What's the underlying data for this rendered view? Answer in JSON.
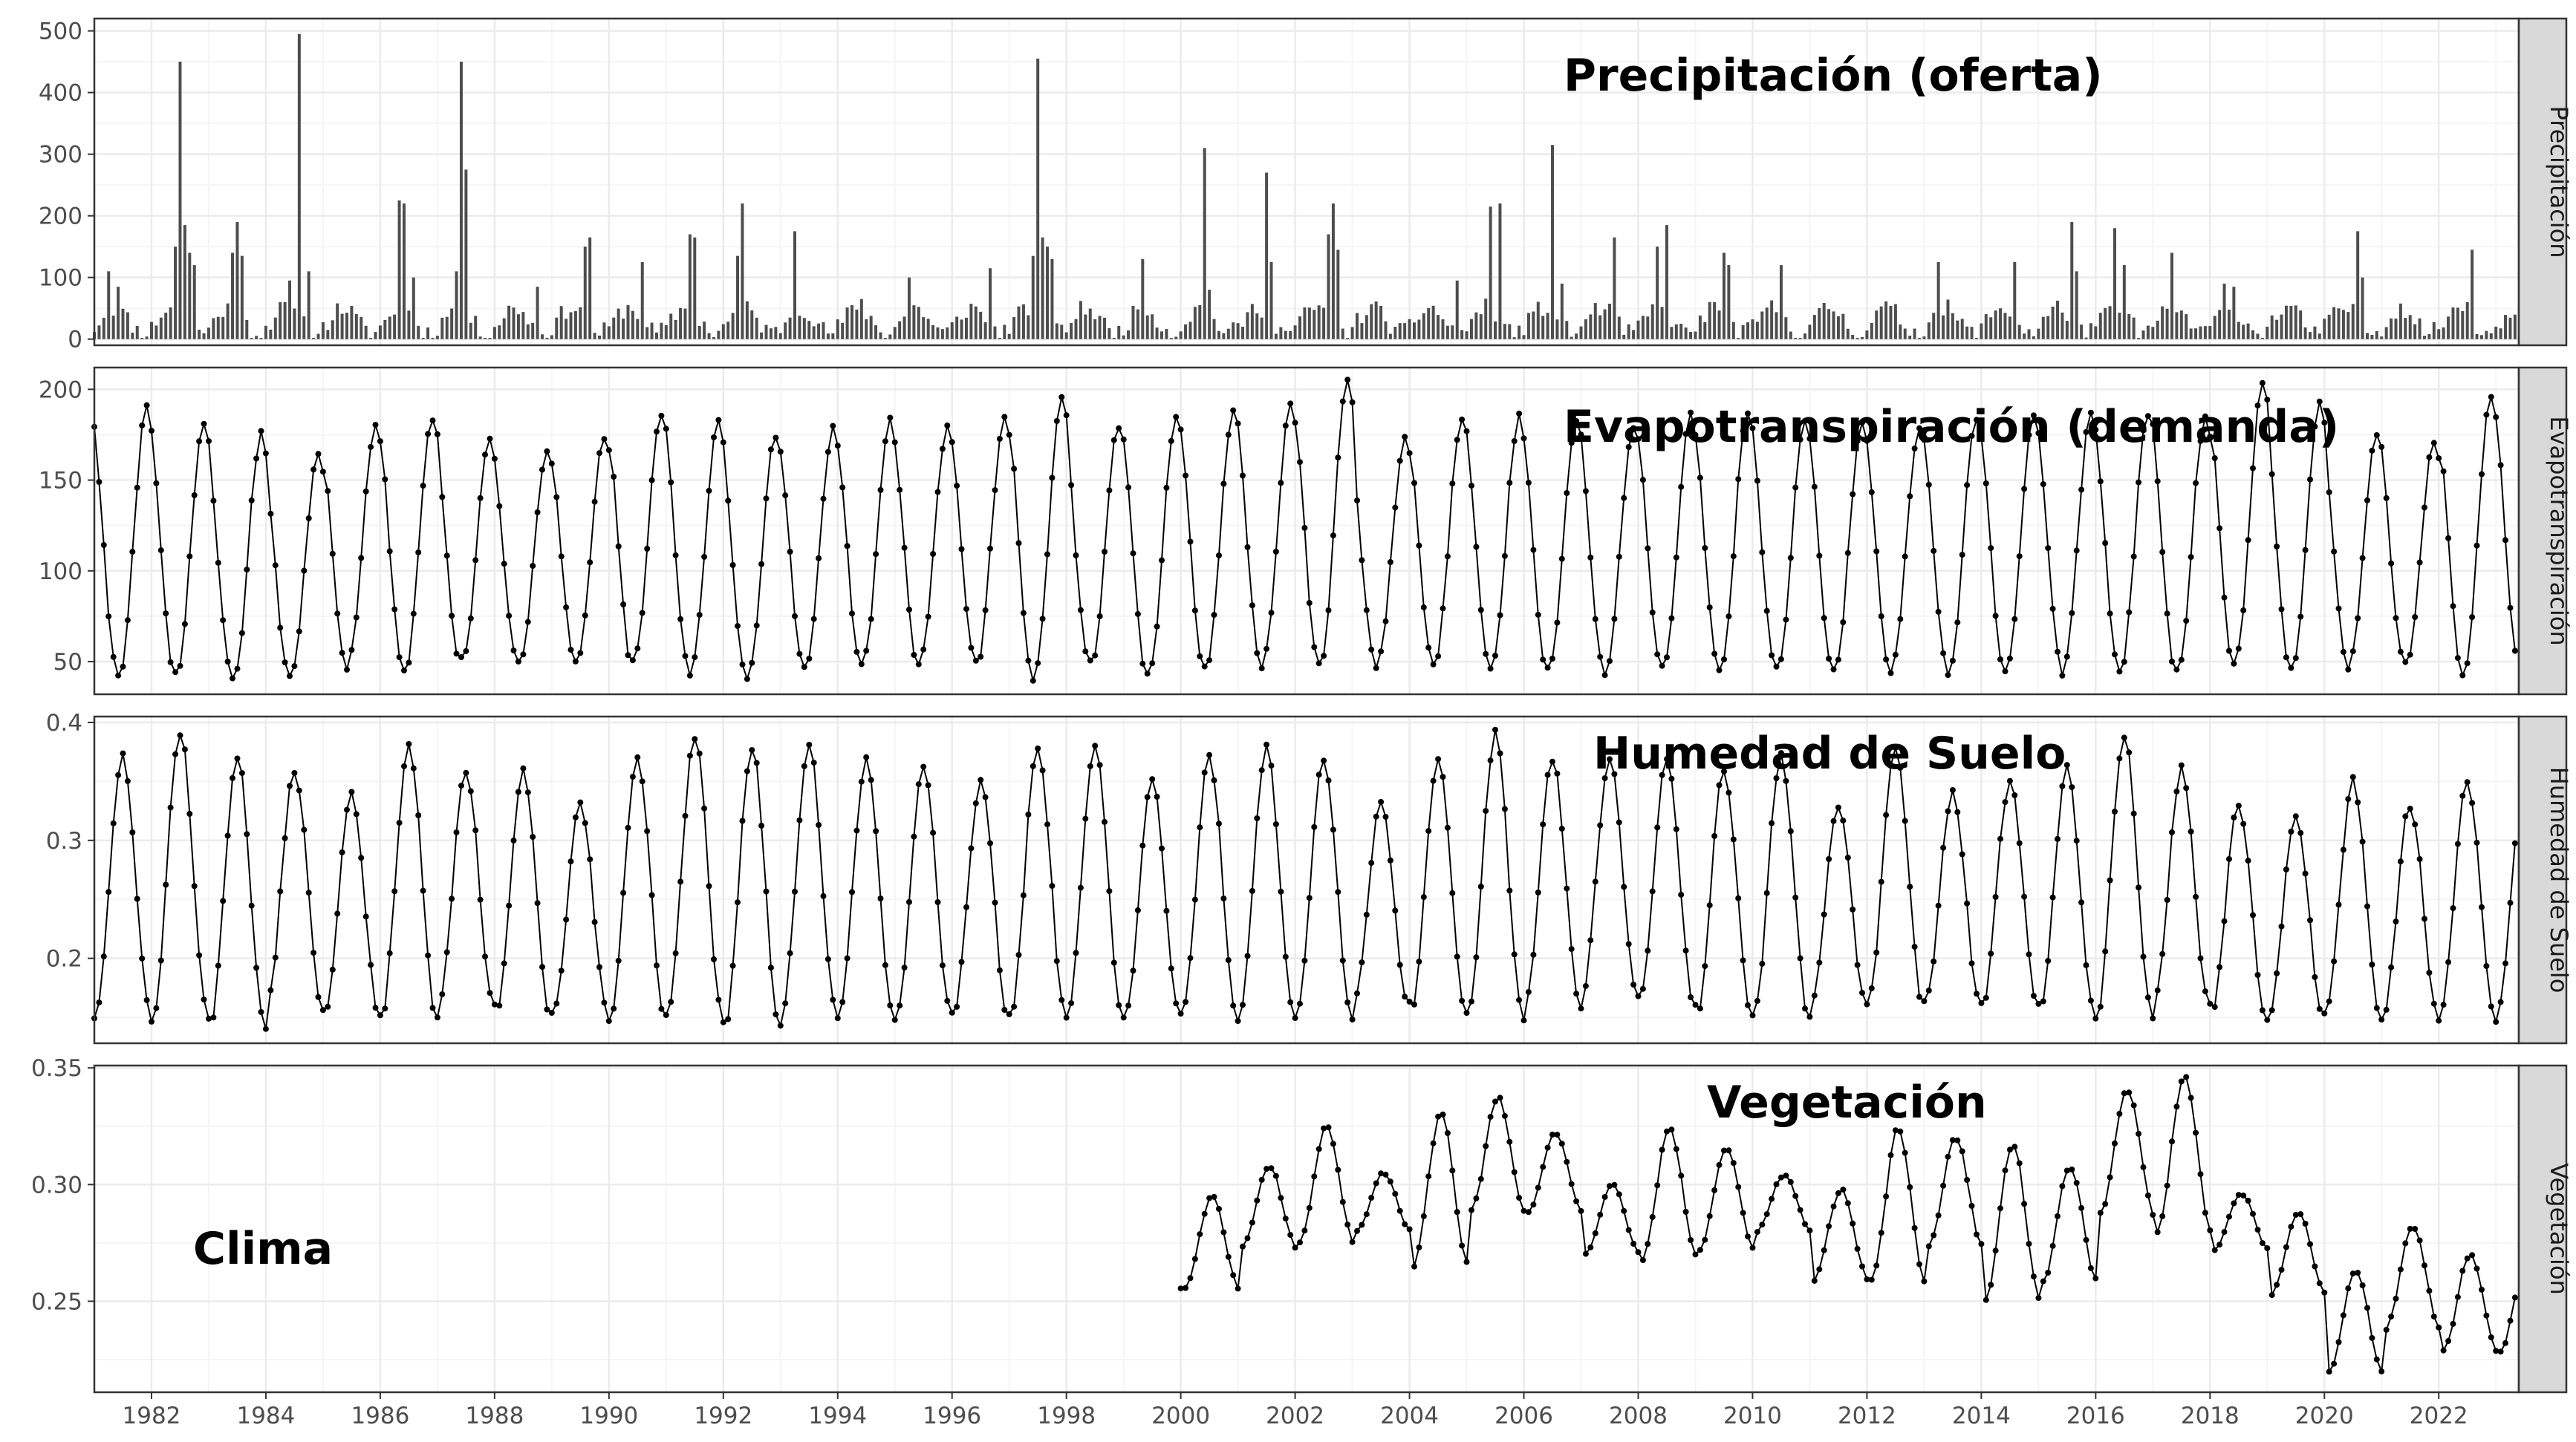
{
  "colors": {
    "background": "#ffffff",
    "panel_border": "#333333",
    "grid_major": "#ebebeb",
    "grid_minor": "#f5f5f5",
    "strip_fill": "#d9d9d9",
    "ink": "#000000",
    "bar": "#4d4d4d"
  },
  "figure": {
    "annotation": "Clima",
    "x_ticks": [
      "1982",
      "1984",
      "1986",
      "1988",
      "1990",
      "1992",
      "1994",
      "1996",
      "1998",
      "2000",
      "2002",
      "2004",
      "2006",
      "2008",
      "2010",
      "2012",
      "2014",
      "2016",
      "2018",
      "2020",
      "2022"
    ]
  },
  "chart_data": [
    {
      "type": "bar",
      "strip": "Precipitación",
      "title": "Precipitación (oferta)",
      "x_range": [
        1981.0,
        2023.4
      ],
      "ylim": [
        -10,
        520
      ],
      "y_ticks": [
        "0",
        "100",
        "200",
        "300",
        "400",
        "500"
      ],
      "y_tick_values": [
        0,
        100,
        200,
        300,
        400,
        500
      ],
      "grid": true,
      "baseline": 25,
      "seasonal_amplitude": 20,
      "noise": 15,
      "seed": 11,
      "peaks": [
        {
          "x": 1981.25,
          "value": 110
        },
        {
          "x": 1981.42,
          "value": 85
        },
        {
          "x": 1982.42,
          "value": 150
        },
        {
          "x": 1982.5,
          "value": 450
        },
        {
          "x": 1982.58,
          "value": 185
        },
        {
          "x": 1982.67,
          "value": 140
        },
        {
          "x": 1982.75,
          "value": 120
        },
        {
          "x": 1983.42,
          "value": 140
        },
        {
          "x": 1983.5,
          "value": 190
        },
        {
          "x": 1983.58,
          "value": 135
        },
        {
          "x": 1984.42,
          "value": 95
        },
        {
          "x": 1984.58,
          "value": 495
        },
        {
          "x": 1984.75,
          "value": 110
        },
        {
          "x": 1986.33,
          "value": 225
        },
        {
          "x": 1986.42,
          "value": 220
        },
        {
          "x": 1986.58,
          "value": 100
        },
        {
          "x": 1987.33,
          "value": 110
        },
        {
          "x": 1987.42,
          "value": 450
        },
        {
          "x": 1987.5,
          "value": 275
        },
        {
          "x": 1988.75,
          "value": 85
        },
        {
          "x": 1989.58,
          "value": 150
        },
        {
          "x": 1989.67,
          "value": 165
        },
        {
          "x": 1990.58,
          "value": 125
        },
        {
          "x": 1991.42,
          "value": 170
        },
        {
          "x": 1991.5,
          "value": 165
        },
        {
          "x": 1992.25,
          "value": 135
        },
        {
          "x": 1992.33,
          "value": 220
        },
        {
          "x": 1993.25,
          "value": 175
        },
        {
          "x": 1994.42,
          "value": 65
        },
        {
          "x": 1995.25,
          "value": 100
        },
        {
          "x": 1996.67,
          "value": 115
        },
        {
          "x": 1997.42,
          "value": 135
        },
        {
          "x": 1997.5,
          "value": 455
        },
        {
          "x": 1997.58,
          "value": 165
        },
        {
          "x": 1997.67,
          "value": 150
        },
        {
          "x": 1997.75,
          "value": 130
        },
        {
          "x": 1999.33,
          "value": 130
        },
        {
          "x": 2000.42,
          "value": 310
        },
        {
          "x": 2000.5,
          "value": 80
        },
        {
          "x": 2001.5,
          "value": 270
        },
        {
          "x": 2001.58,
          "value": 125
        },
        {
          "x": 2002.58,
          "value": 170
        },
        {
          "x": 2002.67,
          "value": 220
        },
        {
          "x": 2002.75,
          "value": 145
        },
        {
          "x": 2004.83,
          "value": 95
        },
        {
          "x": 2005.42,
          "value": 215
        },
        {
          "x": 2005.58,
          "value": 220
        },
        {
          "x": 2006.5,
          "value": 315
        },
        {
          "x": 2006.67,
          "value": 90
        },
        {
          "x": 2007.58,
          "value": 165
        },
        {
          "x": 2008.33,
          "value": 150
        },
        {
          "x": 2008.5,
          "value": 185
        },
        {
          "x": 2009.5,
          "value": 140
        },
        {
          "x": 2009.58,
          "value": 120
        },
        {
          "x": 2010.5,
          "value": 120
        },
        {
          "x": 2013.25,
          "value": 125
        },
        {
          "x": 2014.58,
          "value": 125
        },
        {
          "x": 2015.58,
          "value": 190
        },
        {
          "x": 2015.67,
          "value": 110
        },
        {
          "x": 2016.33,
          "value": 180
        },
        {
          "x": 2016.5,
          "value": 120
        },
        {
          "x": 2017.33,
          "value": 140
        },
        {
          "x": 2018.25,
          "value": 90
        },
        {
          "x": 2018.42,
          "value": 85
        },
        {
          "x": 2020.58,
          "value": 175
        },
        {
          "x": 2020.67,
          "value": 100
        },
        {
          "x": 2022.58,
          "value": 145
        },
        {
          "x": 2022.5,
          "value": 60
        }
      ]
    },
    {
      "type": "line",
      "strip": "Evapotranspiración",
      "title": "Evapotranspiración (demanda)",
      "x_range": [
        1981.0,
        2023.4
      ],
      "ylim": [
        32,
        212
      ],
      "y_ticks": [
        "50",
        "100",
        "150",
        "200"
      ],
      "y_tick_values": [
        50,
        100,
        150,
        200
      ],
      "grid": true,
      "x_start": 1981.0,
      "x_end": 2023.4,
      "annual_max": [
        190,
        183,
        175,
        165,
        178,
        185,
        172,
        165,
        175,
        188,
        182,
        175,
        178,
        182,
        180,
        185,
        195,
        180,
        185,
        188,
        190,
        203,
        172,
        185,
        185,
        182,
        180,
        185,
        188,
        185,
        182,
        180,
        185,
        188,
        185,
        188,
        185,
        202,
        192,
        175,
        170,
        195
      ],
      "annual_min": [
        42,
        42,
        40,
        42,
        48,
        45,
        50,
        48,
        50,
        48,
        45,
        42,
        48,
        48,
        48,
        48,
        40,
        48,
        42,
        45,
        48,
        48,
        48,
        48,
        48,
        45,
        45,
        45,
        45,
        45,
        45,
        45,
        45,
        45,
        45,
        45,
        45,
        48,
        45,
        48,
        48,
        45
      ],
      "peak_phase": 0.92
    },
    {
      "type": "line",
      "strip": "Humedad de Suelo",
      "title": "Humedad de Suelo",
      "x_range": [
        1981.0,
        2023.4
      ],
      "ylim": [
        0.128,
        0.405
      ],
      "y_ticks": [
        "0.2",
        "0.3",
        "0.4"
      ],
      "y_tick_values": [
        0.2,
        0.3,
        0.4
      ],
      "grid": true,
      "x_start": 1981.0,
      "x_end": 2023.4,
      "annual_max": [
        0.37,
        0.39,
        0.37,
        0.36,
        0.34,
        0.38,
        0.36,
        0.36,
        0.33,
        0.37,
        0.39,
        0.38,
        0.38,
        0.37,
        0.36,
        0.35,
        0.38,
        0.38,
        0.35,
        0.37,
        0.38,
        0.37,
        0.33,
        0.37,
        0.39,
        0.37,
        0.37,
        0.37,
        0.36,
        0.37,
        0.33,
        0.38,
        0.34,
        0.35,
        0.36,
        0.39,
        0.36,
        0.33,
        0.32,
        0.35,
        0.33,
        0.35
      ],
      "annual_min": [
        0.15,
        0.15,
        0.14,
        0.16,
        0.15,
        0.15,
        0.16,
        0.15,
        0.15,
        0.15,
        0.15,
        0.14,
        0.15,
        0.15,
        0.15,
        0.15,
        0.15,
        0.15,
        0.15,
        0.15,
        0.15,
        0.15,
        0.16,
        0.15,
        0.15,
        0.16,
        0.17,
        0.16,
        0.15,
        0.15,
        0.16,
        0.16,
        0.16,
        0.16,
        0.15,
        0.15,
        0.16,
        0.15,
        0.15,
        0.15,
        0.15,
        0.15
      ],
      "peak_phase": 0.5
    },
    {
      "type": "line",
      "strip": "Vegetación",
      "title": "Vegetación",
      "x_range": [
        1981.0,
        2023.4
      ],
      "ylim": [
        0.211,
        0.351
      ],
      "y_ticks": [
        "0.25",
        "0.30",
        "0.35"
      ],
      "y_tick_values": [
        0.25,
        0.3,
        0.35
      ],
      "grid": true,
      "x_start": 2000.0,
      "x_end": 2023.4,
      "annual_max": [
        0.295,
        0.308,
        0.325,
        0.305,
        0.33,
        0.337,
        0.322,
        0.3,
        0.324,
        0.316,
        0.304,
        0.298,
        0.324,
        0.32,
        0.318,
        0.308,
        0.341,
        0.346,
        0.296,
        0.288,
        0.263,
        0.282,
        0.27
      ],
      "annual_min": [
        0.255,
        0.273,
        0.275,
        0.28,
        0.265,
        0.288,
        0.288,
        0.27,
        0.268,
        0.272,
        0.28,
        0.259,
        0.258,
        0.273,
        0.25,
        0.258,
        0.287,
        0.28,
        0.272,
        0.253,
        0.219,
        0.238,
        0.228
      ],
      "peak_phase": 0.55
    }
  ]
}
